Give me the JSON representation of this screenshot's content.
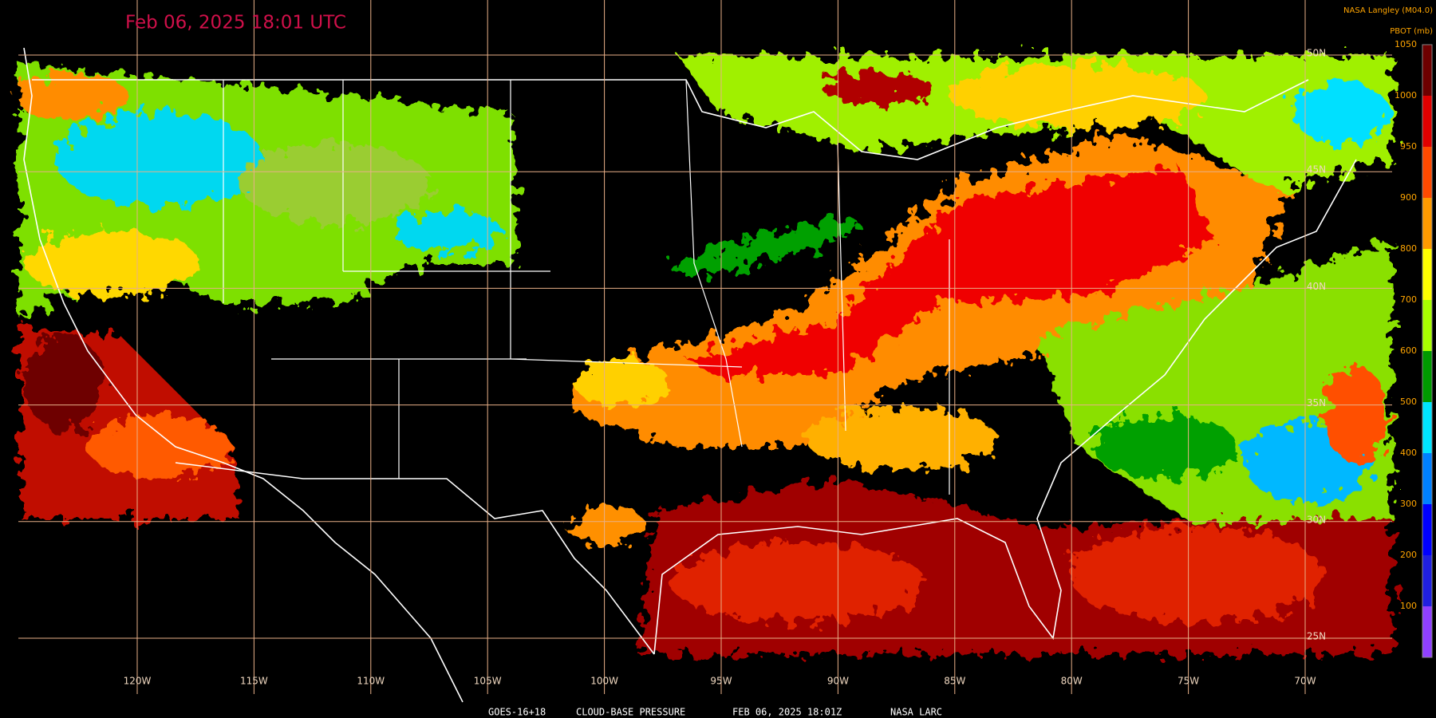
{
  "header": {
    "title": "Feb 06, 2025 18:01 UTC",
    "credit": "NASA Langley (M04.0)"
  },
  "legend": {
    "label": "PBOT (mb)",
    "ticks": [
      1050,
      1000,
      950,
      900,
      800,
      700,
      600,
      500,
      400,
      300,
      200,
      100
    ],
    "colors": [
      "#6e0000",
      "#e00000",
      "#ff4a00",
      "#ff9a00",
      "#ffff00",
      "#a8ff00",
      "#009a00",
      "#00e4ff",
      "#0080ff",
      "#0000ff",
      "#2020e0",
      "#9040ff"
    ]
  },
  "grid": {
    "longitudes": [
      "120W",
      "115W",
      "110W",
      "105W",
      "100W",
      "95W",
      "90W",
      "85W",
      "80W",
      "75W",
      "70W"
    ],
    "latitudes": [
      "50N",
      "45N",
      "40N",
      "35N",
      "30N",
      "25N"
    ]
  },
  "footer": {
    "satellite": "GOES-16+18",
    "product": "CLOUD-BASE PRESSURE",
    "time": "FEB 06, 2025 18:01Z",
    "source": "NASA LARC"
  }
}
